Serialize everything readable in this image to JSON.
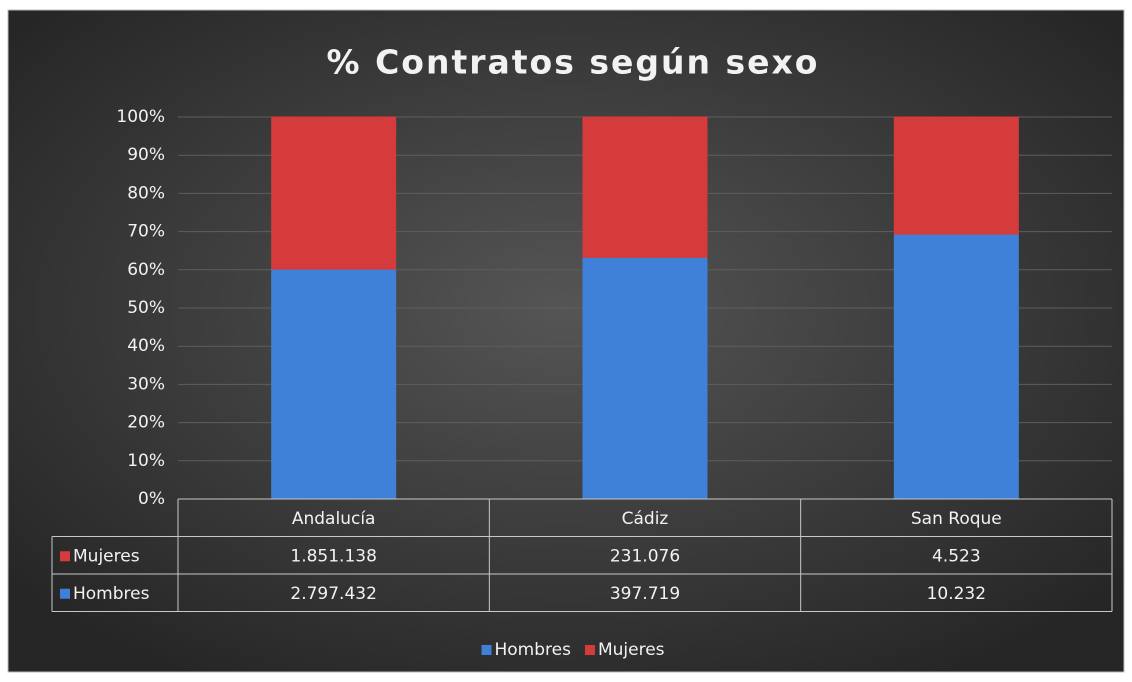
{
  "chart_data": {
    "type": "bar",
    "stacking": "percent",
    "title": "% Contratos según sexo",
    "categories": [
      "Andalucía",
      "Cádiz",
      "San Roque"
    ],
    "series": [
      {
        "name": "Mujeres",
        "color": "#d63b3b",
        "values": [
          1851138,
          231076,
          4523
        ],
        "value_labels": [
          "1.851.138",
          "231.076",
          "4.523"
        ]
      },
      {
        "name": "Hombres",
        "color": "#3f80d8",
        "values": [
          2797432,
          397719,
          10232
        ],
        "value_labels": [
          "2.797.432",
          "397.719",
          "10.232"
        ]
      }
    ],
    "ylim": [
      0,
      100
    ],
    "yticks": [
      {
        "value": 0,
        "label": "0%"
      },
      {
        "value": 10,
        "label": "10%"
      },
      {
        "value": 20,
        "label": "20%"
      },
      {
        "value": 30,
        "label": "30%"
      },
      {
        "value": 40,
        "label": "40%"
      },
      {
        "value": 50,
        "label": "50%"
      },
      {
        "value": 60,
        "label": "60%"
      },
      {
        "value": 70,
        "label": "70%"
      },
      {
        "value": 80,
        "label": "80%"
      },
      {
        "value": 90,
        "label": "90%"
      },
      {
        "value": 100,
        "label": "100%"
      }
    ],
    "grid": true,
    "legend": "bottom",
    "data_table": true
  }
}
